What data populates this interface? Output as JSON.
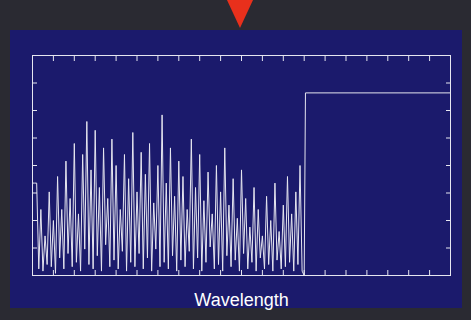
{
  "chart_data": {
    "type": "line",
    "xlabel": "Wavelength",
    "color": "#e6e6f0",
    "grid": false,
    "tick_labels": false,
    "x": [
      0,
      0.5,
      1,
      1.5,
      2,
      2.5,
      3,
      3.5,
      4,
      4.5,
      5,
      5.5,
      6,
      6.5,
      7,
      7.5,
      8,
      8.5,
      9,
      9.5,
      10,
      10.5,
      11,
      11.5,
      12,
      12.5,
      13,
      13.5,
      14,
      14.5,
      15,
      15.5,
      16,
      16.5,
      17,
      17.5,
      18,
      18.5,
      19,
      19.5,
      20,
      20.5,
      21,
      21.5,
      22,
      22.5,
      23,
      23.5,
      24,
      24.5,
      25,
      25.5,
      26,
      26.5,
      27,
      27.5,
      28,
      28.5,
      29,
      29.5,
      30,
      30.5,
      31,
      31.5,
      32,
      32.5,
      33,
      33.5,
      34,
      34.5,
      35,
      35.5,
      36,
      36.5,
      37,
      37.5,
      38,
      38.5,
      39,
      39.5,
      40,
      40.5,
      41,
      41.5,
      42,
      42.5,
      43,
      43.5,
      44,
      44.5,
      45,
      45.5,
      46,
      46.5,
      47,
      47.5,
      48,
      48.5,
      49,
      49.5,
      50,
      50.5,
      51,
      51.5,
      52,
      52.5,
      53,
      53.5,
      54,
      54.5,
      55,
      55.5,
      56,
      56.5,
      57,
      57.5,
      58,
      58.5,
      59,
      59.5,
      60,
      60.5,
      61,
      61.5,
      62,
      62.5,
      63,
      63.5,
      64,
      64.5,
      65,
      65.3,
      100
    ],
    "values": [
      42,
      42,
      42,
      3,
      30,
      2,
      18,
      5,
      38,
      4,
      25,
      1,
      45,
      8,
      30,
      3,
      52,
      10,
      35,
      4,
      60,
      6,
      28,
      2,
      55,
      12,
      70,
      5,
      48,
      3,
      66,
      9,
      40,
      2,
      58,
      14,
      35,
      4,
      62,
      7,
      50,
      3,
      30,
      11,
      55,
      2,
      44,
      6,
      65,
      4,
      38,
      10,
      56,
      3,
      46,
      8,
      60,
      2,
      33,
      12,
      50,
      4,
      73,
      6,
      42,
      3,
      58,
      9,
      36,
      2,
      52,
      7,
      45,
      4,
      30,
      11,
      62,
      3,
      40,
      8,
      55,
      2,
      34,
      6,
      47,
      13,
      28,
      3,
      50,
      5,
      38,
      2,
      58,
      9,
      32,
      4,
      44,
      7,
      26,
      2,
      48,
      10,
      35,
      3,
      22,
      6,
      40,
      2,
      30,
      8,
      18,
      3,
      36,
      5,
      25,
      2,
      42,
      7,
      20,
      3,
      32,
      4,
      45,
      6,
      28,
      2,
      38,
      5,
      50,
      2,
      0,
      83,
      83
    ],
    "xlim": [
      0,
      100
    ],
    "ylim": [
      0,
      100
    ],
    "xticks": [
      0,
      5,
      10,
      15,
      20,
      25,
      30,
      35,
      40,
      45,
      50,
      55,
      60,
      65,
      70,
      75,
      80,
      85,
      90,
      95,
      100
    ],
    "yticks": [
      0,
      12.5,
      25,
      37.5,
      50,
      62.5,
      75,
      87.5,
      100
    ]
  }
}
